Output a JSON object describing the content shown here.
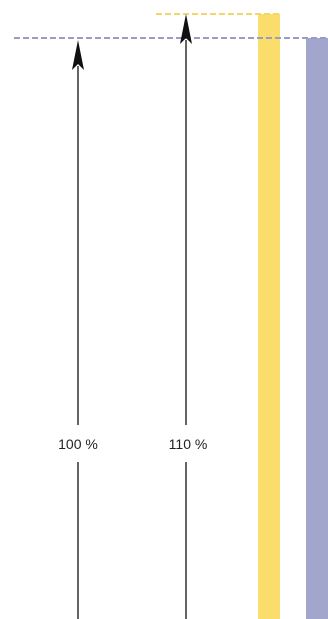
{
  "labels": {
    "left_percent": "100 %",
    "right_percent": "110 %"
  },
  "colors": {
    "yellow_bar": "#FBDD6B",
    "blue_bar": "#A3A6CC",
    "dashed_blue": "#9A9CC6",
    "dashed_yellow": "#F5D56A",
    "arrow": "#111111"
  }
}
